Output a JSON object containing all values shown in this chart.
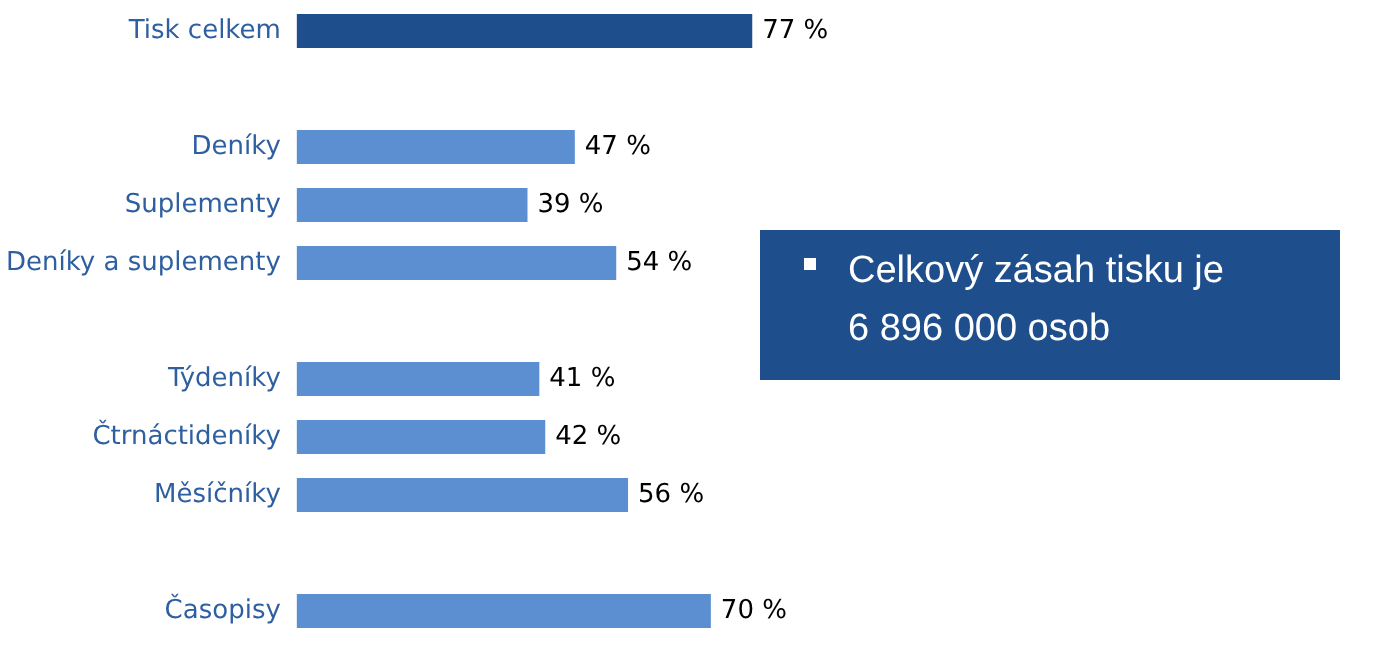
{
  "chart_data": {
    "type": "bar",
    "orientation": "horizontal",
    "categories": [
      "Tisk celkem",
      null,
      "Deníky",
      "Suplementy",
      "Deníky a suplementy",
      null,
      "Týdeníky",
      "Čtrnáctideníky",
      "Měsíčníky",
      null,
      "Časopisy"
    ],
    "values": [
      77,
      null,
      47,
      39,
      54,
      null,
      41,
      42,
      56,
      null,
      70
    ],
    "value_labels": [
      "77 %",
      null,
      "47 %",
      "39 %",
      "54 %",
      null,
      "41 %",
      "42 %",
      "56 %",
      null,
      "70 %"
    ],
    "colors": [
      "#1f4e8c",
      null,
      "#5b8fd1",
      "#5b8fd1",
      "#5b8fd1",
      null,
      "#5b8fd1",
      "#5b8fd1",
      "#5b8fd1",
      null,
      "#5b8fd1"
    ],
    "annotations": [
      "Celkový zásah tisku je 6 896 000 osob"
    ]
  }
}
